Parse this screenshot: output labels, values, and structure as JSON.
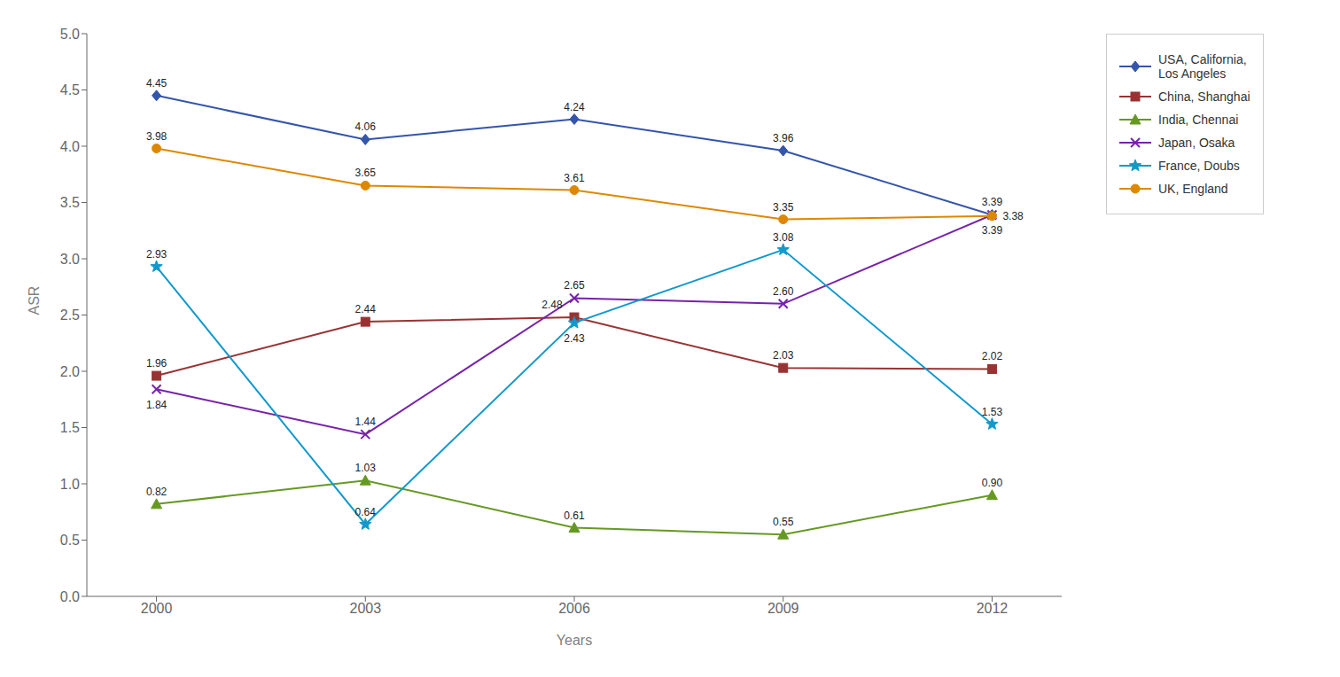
{
  "chart_data": {
    "type": "line",
    "x": [
      2000,
      2003,
      2006,
      2009,
      2012
    ],
    "xlabel": "Years",
    "ylabel": "ASR",
    "xlim": [
      1999,
      2013
    ],
    "xticks": [
      2000,
      2003,
      2006,
      2009,
      2012
    ],
    "ylim": [
      0,
      5
    ],
    "yticks": [
      {
        "value": 0,
        "label": "0.0"
      },
      0.5,
      {
        "value": 1,
        "label": "1.0"
      },
      1.5,
      {
        "value": 2,
        "label": "2.0"
      },
      2.5,
      {
        "value": 3,
        "label": "3.0"
      },
      3.5,
      {
        "value": 4,
        "label": "4.0"
      },
      4.5,
      {
        "value": 5,
        "label": "5.0"
      }
    ],
    "grid": false,
    "legend": "right",
    "data_labels": true,
    "series": [
      {
        "name": "USA, California,\nLos Angeles",
        "color": "#3355AA",
        "marker": "diamond",
        "values": [
          4.45,
          4.06,
          4.24,
          3.96,
          3.39
        ],
        "value_labels": [
          "4.45",
          "4.06",
          "4.24",
          "3.96",
          "3.39"
        ]
      },
      {
        "name": "China, Shanghai",
        "color": "#993333",
        "marker": "square",
        "values": [
          1.96,
          2.44,
          2.48,
          2.03,
          2.02
        ],
        "value_labels": [
          "1.96",
          "2.44",
          "2.48",
          "2.03",
          "2.02"
        ]
      },
      {
        "name": "India, Chennai",
        "color": "#669922",
        "marker": "triangle",
        "values": [
          0.82,
          1.03,
          0.61,
          0.55,
          0.9
        ],
        "value_labels": [
          "0.82",
          "1.03",
          "0.61",
          "0.55",
          "0.90"
        ]
      },
      {
        "name": "Japan, Osaka",
        "color": "#7722AA",
        "marker": "x",
        "values": [
          1.84,
          1.44,
          2.65,
          2.6,
          3.39
        ],
        "value_labels": [
          "1.84",
          "1.44",
          "2.65",
          "2.60",
          "3.39"
        ]
      },
      {
        "name": "France, Doubs",
        "color": "#1199CC",
        "marker": "star",
        "values": [
          2.93,
          0.64,
          2.43,
          3.08,
          1.53
        ],
        "value_labels": [
          "2.93",
          "0.64",
          "2.43",
          "3.08",
          "1.53"
        ]
      },
      {
        "name": "UK, England",
        "color": "#DD8800",
        "marker": "circle",
        "values": [
          3.98,
          3.65,
          3.61,
          3.35,
          3.38
        ],
        "value_labels": [
          "3.98",
          "3.65",
          "3.61",
          "3.35",
          "3.38"
        ]
      }
    ]
  }
}
